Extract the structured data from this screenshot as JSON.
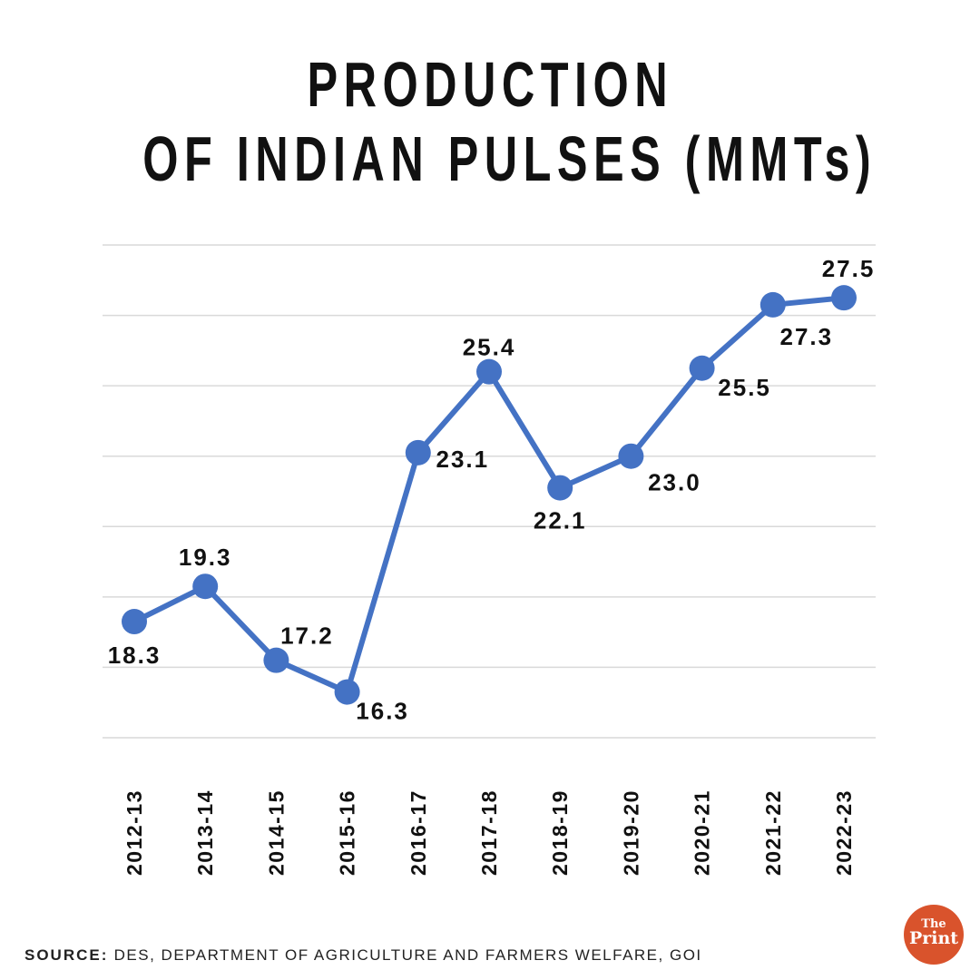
{
  "title": {
    "line1": "PRODUCTION",
    "line2": "OF INDIAN PULSES (MMTs)"
  },
  "source": {
    "label": "SOURCE:",
    "text": "DES, DEPARTMENT OF AGRICULTURE AND FARMERS WELFARE, GOI"
  },
  "logo": {
    "the": "The",
    "print": "Print"
  },
  "colors": {
    "line": "#4472c4",
    "grid": "#d9d9d9",
    "text": "#111111"
  },
  "chart_data": {
    "type": "line",
    "title": "PRODUCTION OF INDIAN PULSES (MMTs)",
    "xlabel": "",
    "ylabel": "",
    "categories": [
      "2012-13",
      "2013-14",
      "2014-15",
      "2015-16",
      "2016-17",
      "2017-18",
      "2018-19",
      "2019-20",
      "2020-21",
      "2021-22",
      "2022-23"
    ],
    "series": [
      {
        "name": "Production (MMT)",
        "values": [
          18.3,
          19.3,
          17.2,
          16.3,
          23.1,
          25.4,
          22.1,
          23.0,
          25.5,
          27.3,
          27.5
        ],
        "labels": [
          "18.3",
          "19.3",
          "17.2",
          "16.3",
          "23.1",
          "25.4",
          "22.1",
          "23.0",
          "25.5",
          "27.3",
          "27.5"
        ]
      }
    ],
    "ylim": [
      15,
      29
    ],
    "grid": true,
    "legend": "none"
  }
}
